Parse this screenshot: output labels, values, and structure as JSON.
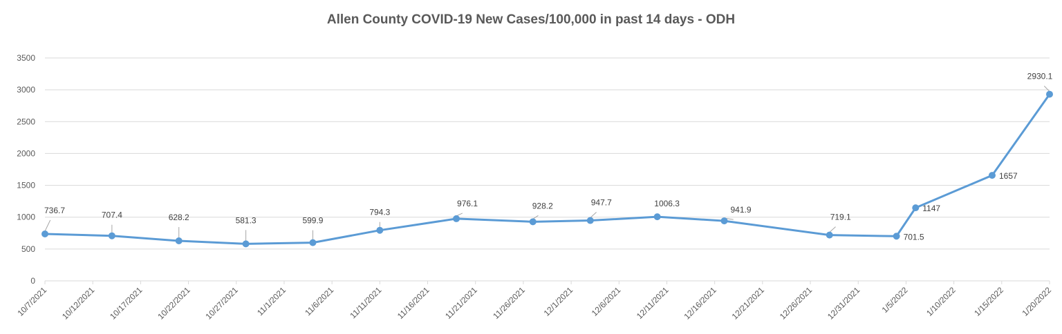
{
  "chart_data": {
    "type": "line",
    "title": "Allen County COVID-19 New Cases/100,000 in past 14 days - ODH",
    "xlabel": "",
    "ylabel": "",
    "ylim": [
      0,
      3500
    ],
    "y_ticks": [
      0,
      500,
      1000,
      1500,
      2000,
      2500,
      3000,
      3500
    ],
    "x_range": [
      "10/7/2021",
      "1/20/2022"
    ],
    "x_ticks": [
      "10/7/2021",
      "10/12/2021",
      "10/17/2021",
      "10/22/2021",
      "10/27/2021",
      "11/1/2021",
      "11/6/2021",
      "11/11/2021",
      "11/16/2021",
      "11/21/2021",
      "11/26/2021",
      "12/1/2021",
      "12/6/2021",
      "12/11/2021",
      "12/16/2021",
      "12/21/2021",
      "12/26/2021",
      "12/31/2021",
      "1/5/2022",
      "1/10/2022",
      "1/15/2022",
      "1/20/2022"
    ],
    "grid": "horizontal",
    "legend": "none",
    "line_color": "#5B9BD5",
    "series": [
      {
        "points": [
          {
            "x": "10/7/2021",
            "y": 736.7,
            "label": "736.7"
          },
          {
            "x": "10/14/2021",
            "y": 707.4,
            "label": "707.4"
          },
          {
            "x": "10/21/2021",
            "y": 628.2,
            "label": "628.2"
          },
          {
            "x": "10/28/2021",
            "y": 581.3,
            "label": "581.3"
          },
          {
            "x": "11/4/2021",
            "y": 599.9,
            "label": "599.9"
          },
          {
            "x": "11/11/2021",
            "y": 794.3,
            "label": "794.3"
          },
          {
            "x": "11/19/2021",
            "y": 976.1,
            "label": "976.1"
          },
          {
            "x": "11/27/2021",
            "y": 928.2,
            "label": "928.2"
          },
          {
            "x": "12/3/2021",
            "y": 947.7,
            "label": "947.7"
          },
          {
            "x": "12/10/2021",
            "y": 1006.3,
            "label": "1006.3"
          },
          {
            "x": "12/17/2021",
            "y": 941.9,
            "label": "941.9"
          },
          {
            "x": "12/28/2021",
            "y": 719.1,
            "label": "719.1"
          },
          {
            "x": "1/4/2022",
            "y": 701.5,
            "label": "701.5"
          },
          {
            "x": "1/6/2022",
            "y": 1147,
            "label": "1147"
          },
          {
            "x": "1/14/2022",
            "y": 1657,
            "label": "1657"
          },
          {
            "x": "1/20/2022",
            "y": 2930.1,
            "label": "2930.1"
          }
        ]
      }
    ]
  }
}
